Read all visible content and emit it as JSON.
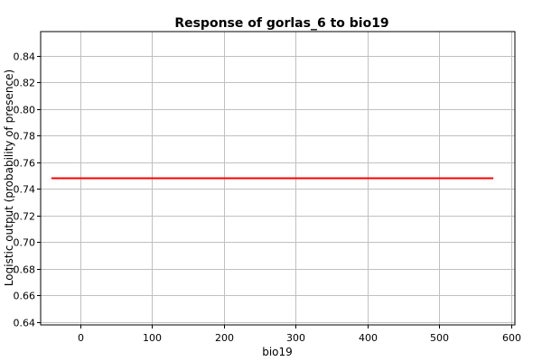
{
  "chart_data": {
    "type": "line",
    "title": "Response of gorlas_6 to bio19",
    "xlabel": "bio19",
    "ylabel": "Logistic output (probability of presence)",
    "xlim": [
      -55,
      605
    ],
    "ylim": [
      0.638,
      0.858
    ],
    "x_ticks": [
      0,
      100,
      200,
      300,
      400,
      500,
      600
    ],
    "y_ticks": [
      0.64,
      0.66,
      0.68,
      0.7,
      0.72,
      0.74,
      0.76,
      0.78,
      0.8,
      0.82,
      0.84
    ],
    "y_tick_labels": [
      "0.64",
      "0.66",
      "0.68",
      "0.70",
      "0.72",
      "0.74",
      "0.76",
      "0.78",
      "0.80",
      "0.82",
      "0.84"
    ],
    "grid": true,
    "series": [
      {
        "color": "#ff0000",
        "x": [
          -40,
          575
        ],
        "y": [
          0.748,
          0.748
        ]
      }
    ]
  }
}
